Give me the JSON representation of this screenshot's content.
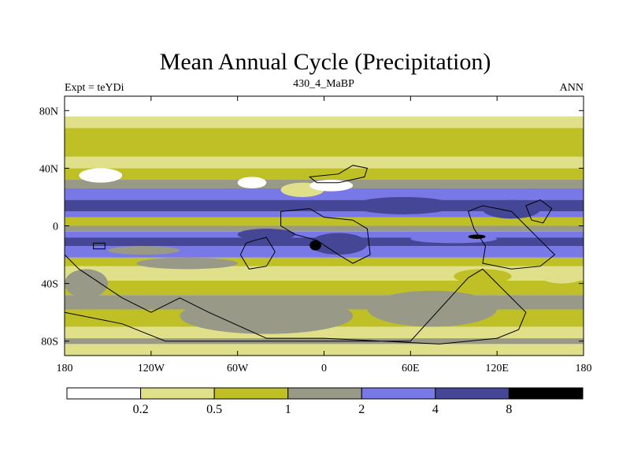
{
  "chart_data": {
    "type": "contour-map",
    "title": "Mean Annual Cycle (Precipitation)",
    "subtitle_left": "Expt = teYDi",
    "subtitle_center": "430_4_MaBP",
    "subtitle_right": "ANN",
    "x_range": [
      -180,
      180
    ],
    "y_range": [
      -90,
      90
    ],
    "x_ticks": [
      {
        "value": -180,
        "label": "180"
      },
      {
        "value": -120,
        "label": "120W"
      },
      {
        "value": -60,
        "label": "60W"
      },
      {
        "value": 0,
        "label": "0"
      },
      {
        "value": 60,
        "label": "60E"
      },
      {
        "value": 120,
        "label": "120E"
      },
      {
        "value": 180,
        "label": "180"
      }
    ],
    "y_ticks": [
      {
        "value": 80,
        "label": "80N"
      },
      {
        "value": 40,
        "label": "40N"
      },
      {
        "value": 0,
        "label": "0"
      },
      {
        "value": -40,
        "label": "40S"
      },
      {
        "value": -80,
        "label": "80S"
      }
    ],
    "levels": [
      0.2,
      0.5,
      1,
      2,
      4,
      8
    ],
    "level_labels": [
      "0.2",
      "0.5",
      "1",
      "2",
      "4",
      "8"
    ],
    "colors": [
      "#ffffff",
      "#e0e08a",
      "#bfbf26",
      "#999988",
      "#7878e6",
      "#464696",
      "#000000"
    ],
    "latitude_bands": [
      {
        "lat": [
          -90,
          -82
        ],
        "class": 1
      },
      {
        "lat": [
          -82,
          -78
        ],
        "class": 3
      },
      {
        "lat": [
          -78,
          -70
        ],
        "class": 1
      },
      {
        "lat": [
          -70,
          -58
        ],
        "class": 2
      },
      {
        "lat": [
          -58,
          -48
        ],
        "class": 3
      },
      {
        "lat": [
          -48,
          -38
        ],
        "class": 2
      },
      {
        "lat": [
          -38,
          -28
        ],
        "class": 1
      },
      {
        "lat": [
          -28,
          -22
        ],
        "class": 2
      },
      {
        "lat": [
          -22,
          -14
        ],
        "class": 4
      },
      {
        "lat": [
          -14,
          -8
        ],
        "class": 5
      },
      {
        "lat": [
          -8,
          -4
        ],
        "class": 4
      },
      {
        "lat": [
          -4,
          0
        ],
        "class": 3
      },
      {
        "lat": [
          0,
          6
        ],
        "class": 2
      },
      {
        "lat": [
          6,
          10
        ],
        "class": 4
      },
      {
        "lat": [
          10,
          18
        ],
        "class": 5
      },
      {
        "lat": [
          18,
          26
        ],
        "class": 4
      },
      {
        "lat": [
          26,
          32
        ],
        "class": 3
      },
      {
        "lat": [
          32,
          40
        ],
        "class": 2
      },
      {
        "lat": [
          40,
          48
        ],
        "class": 1
      },
      {
        "lat": [
          48,
          58
        ],
        "class": 2
      },
      {
        "lat": [
          58,
          68
        ],
        "class": 2
      },
      {
        "lat": [
          68,
          76
        ],
        "class": 1
      },
      {
        "lat": [
          76,
          90
        ],
        "class": 0
      }
    ],
    "patches": [
      {
        "lon": [
          -180,
          -150
        ],
        "lat": [
          -50,
          -30
        ],
        "class": 3
      },
      {
        "lon": [
          -100,
          20
        ],
        "lat": [
          -75,
          -50
        ],
        "class": 3
      },
      {
        "lon": [
          -130,
          -60
        ],
        "lat": [
          -30,
          -22
        ],
        "class": 3
      },
      {
        "lon": [
          30,
          120
        ],
        "lat": [
          -70,
          -45
        ],
        "class": 3
      },
      {
        "lon": [
          -60,
          -20
        ],
        "lat": [
          -10,
          -2
        ],
        "class": 5
      },
      {
        "lon": [
          -10,
          30
        ],
        "lat": [
          -20,
          -5
        ],
        "class": 5
      },
      {
        "lon": [
          20,
          90
        ],
        "lat": [
          8,
          20
        ],
        "class": 5
      },
      {
        "lon": [
          110,
          150
        ],
        "lat": [
          5,
          18
        ],
        "class": 5
      },
      {
        "lon": [
          -30,
          0
        ],
        "lat": [
          20,
          30
        ],
        "class": 1
      },
      {
        "lon": [
          90,
          130
        ],
        "lat": [
          -40,
          -30
        ],
        "class": 2
      },
      {
        "lon": [
          -170,
          -140
        ],
        "lat": [
          30,
          40
        ],
        "class": 0
      },
      {
        "lon": [
          -60,
          -40
        ],
        "lat": [
          26,
          34
        ],
        "class": 0
      },
      {
        "lon": [
          -10,
          20
        ],
        "lat": [
          24,
          32
        ],
        "class": 0
      },
      {
        "lon": [
          150,
          180
        ],
        "lat": [
          -40,
          -30
        ],
        "class": 1
      },
      {
        "lon": [
          -150,
          -100
        ],
        "lat": [
          -20,
          -14
        ],
        "class": 3
      },
      {
        "lon": [
          60,
          120
        ],
        "lat": [
          -12,
          -6
        ],
        "class": 4
      },
      {
        "lon": [
          -10,
          -2
        ],
        "lat": [
          -17,
          -10
        ],
        "class": 6
      },
      {
        "lon": [
          100,
          112
        ],
        "lat": [
          -9,
          -6
        ],
        "class": 6
      }
    ],
    "landmasses": [
      {
        "name": "north-africa-arabia",
        "points": [
          [
            -10,
            34
          ],
          [
            10,
            36
          ],
          [
            20,
            42
          ],
          [
            30,
            40
          ],
          [
            28,
            34
          ],
          [
            10,
            30
          ],
          [
            -5,
            30
          ]
        ]
      },
      {
        "name": "africa",
        "points": [
          [
            -30,
            10
          ],
          [
            -10,
            12
          ],
          [
            0,
            6
          ],
          [
            20,
            4
          ],
          [
            30,
            -2
          ],
          [
            32,
            -20
          ],
          [
            20,
            -26
          ],
          [
            10,
            -20
          ],
          [
            -5,
            -10
          ],
          [
            -20,
            -6
          ],
          [
            -30,
            0
          ]
        ]
      },
      {
        "name": "south-america",
        "points": [
          [
            -48,
            -10
          ],
          [
            -40,
            -8
          ],
          [
            -34,
            -18
          ],
          [
            -40,
            -28
          ],
          [
            -52,
            -30
          ],
          [
            -58,
            -20
          ],
          [
            -54,
            -12
          ]
        ]
      },
      {
        "name": "west-island",
        "points": [
          [
            -160,
            -16
          ],
          [
            -152,
            -16
          ],
          [
            -152,
            -12
          ],
          [
            -160,
            -12
          ]
        ]
      },
      {
        "name": "gondwana-south",
        "points": [
          [
            -180,
            -20
          ],
          [
            -170,
            -30
          ],
          [
            -140,
            -50
          ],
          [
            -120,
            -60
          ],
          [
            -100,
            -50
          ],
          [
            -80,
            -60
          ],
          [
            -40,
            -78
          ],
          [
            0,
            -78
          ],
          [
            40,
            -80
          ],
          [
            80,
            -82
          ],
          [
            120,
            -78
          ],
          [
            135,
            -72
          ],
          [
            140,
            -60
          ],
          [
            130,
            -50
          ],
          [
            120,
            -40
          ],
          [
            110,
            -30
          ],
          [
            100,
            -36
          ],
          [
            60,
            -80
          ],
          [
            -110,
            -80
          ],
          [
            -140,
            -68
          ],
          [
            -180,
            -60
          ]
        ]
      },
      {
        "name": "east-block",
        "points": [
          [
            100,
            10
          ],
          [
            110,
            14
          ],
          [
            130,
            10
          ],
          [
            140,
            0
          ],
          [
            150,
            -10
          ],
          [
            160,
            -20
          ],
          [
            150,
            -28
          ],
          [
            130,
            -30
          ],
          [
            110,
            -26
          ],
          [
            112,
            -14
          ],
          [
            104,
            -2
          ]
        ]
      },
      {
        "name": "east-island",
        "points": [
          [
            140,
            14
          ],
          [
            150,
            18
          ],
          [
            158,
            12
          ],
          [
            152,
            2
          ],
          [
            144,
            4
          ]
        ]
      }
    ]
  }
}
